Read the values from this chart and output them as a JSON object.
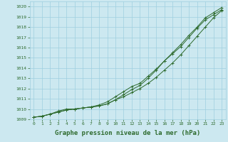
{
  "x": [
    0,
    1,
    2,
    3,
    4,
    5,
    6,
    7,
    8,
    9,
    10,
    11,
    12,
    13,
    14,
    15,
    16,
    17,
    18,
    19,
    20,
    21,
    22,
    23
  ],
  "line1": [
    1009.2,
    1009.3,
    1009.5,
    1009.7,
    1009.9,
    1010.0,
    1010.1,
    1010.2,
    1010.3,
    1010.5,
    1010.9,
    1011.2,
    1011.6,
    1012.0,
    1012.5,
    1013.1,
    1013.8,
    1014.5,
    1015.3,
    1016.2,
    1017.1,
    1018.0,
    1018.9,
    1019.6
  ],
  "line2": [
    1009.2,
    1009.3,
    1009.5,
    1009.7,
    1009.9,
    1010.0,
    1010.1,
    1010.2,
    1010.4,
    1010.7,
    1011.2,
    1011.7,
    1012.2,
    1012.5,
    1013.2,
    1013.9,
    1014.7,
    1015.4,
    1016.1,
    1017.0,
    1017.9,
    1018.7,
    1019.2,
    1019.7
  ],
  "line3": [
    1009.2,
    1009.3,
    1009.5,
    1009.8,
    1010.0,
    1010.0,
    1010.1,
    1010.2,
    1010.3,
    1010.5,
    1010.9,
    1011.4,
    1011.9,
    1012.3,
    1013.0,
    1013.8,
    1014.7,
    1015.5,
    1016.3,
    1017.2,
    1018.0,
    1018.9,
    1019.4,
    1019.9
  ],
  "line_color": "#2d6a2d",
  "bg_color": "#cce8f0",
  "grid_color": "#9fcfdf",
  "xlabel": "Graphe pression niveau de la mer (hPa)",
  "ylim": [
    1009.0,
    1020.5
  ],
  "xlim": [
    -0.5,
    23.5
  ],
  "yticks": [
    1009,
    1010,
    1011,
    1012,
    1013,
    1014,
    1015,
    1016,
    1017,
    1018,
    1019,
    1020
  ],
  "xticks": [
    0,
    1,
    2,
    3,
    4,
    5,
    6,
    7,
    8,
    9,
    10,
    11,
    12,
    13,
    14,
    15,
    16,
    17,
    18,
    19,
    20,
    21,
    22,
    23
  ],
  "tick_fontsize": 4.5,
  "xlabel_fontsize": 6.5,
  "marker": "+",
  "marker_size": 3,
  "linewidth": 0.7
}
